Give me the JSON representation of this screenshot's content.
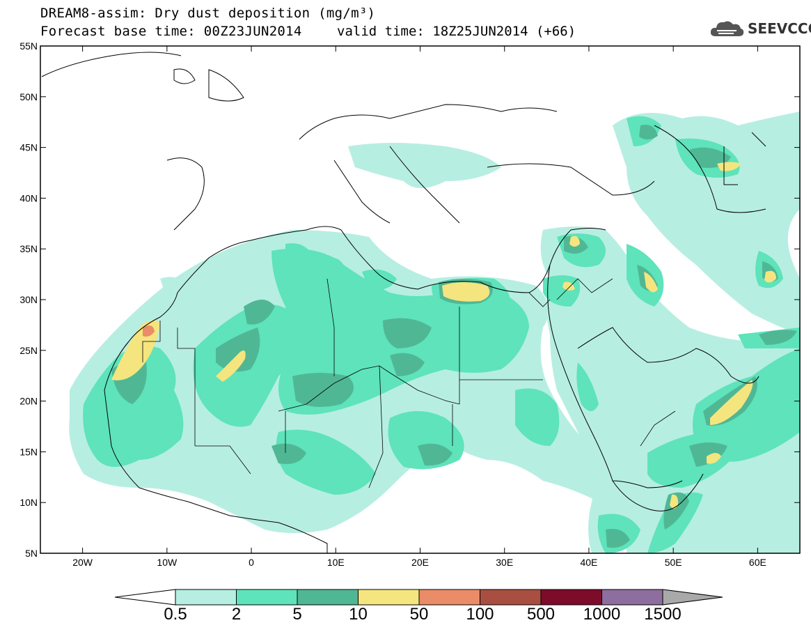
{
  "header": {
    "title_line1": "DREAM8-assim: Dry dust deposition (mg/m³)",
    "forecast_base": "Forecast base time: 00Z23JUN2014",
    "valid_time": "valid time: 18Z25JUN2014 (+66)",
    "logo_text": "SEEVCCC",
    "logo_icon": "cloud-icon"
  },
  "map": {
    "lat_labels": [
      "55N",
      "50N",
      "45N",
      "40N",
      "35N",
      "30N",
      "25N",
      "20N",
      "15N",
      "10N",
      "5N"
    ],
    "lon_labels": [
      "20W",
      "10W",
      "0",
      "10E",
      "20E",
      "30E",
      "40E",
      "50E",
      "60E"
    ],
    "lat_range": [
      5,
      55
    ],
    "lon_range": [
      -25,
      65
    ]
  },
  "colorbar": {
    "labels": [
      "0.5",
      "2",
      "5",
      "10",
      "50",
      "100",
      "500",
      "1000",
      "1500"
    ],
    "colors": [
      "#ffffff",
      "#b7eee2",
      "#5ee3bb",
      "#50b794",
      "#f5e57e",
      "#ea8c67",
      "#a84f42",
      "#7d0c2b",
      "#8d6e9f",
      "#a9a9a9"
    ]
  }
}
